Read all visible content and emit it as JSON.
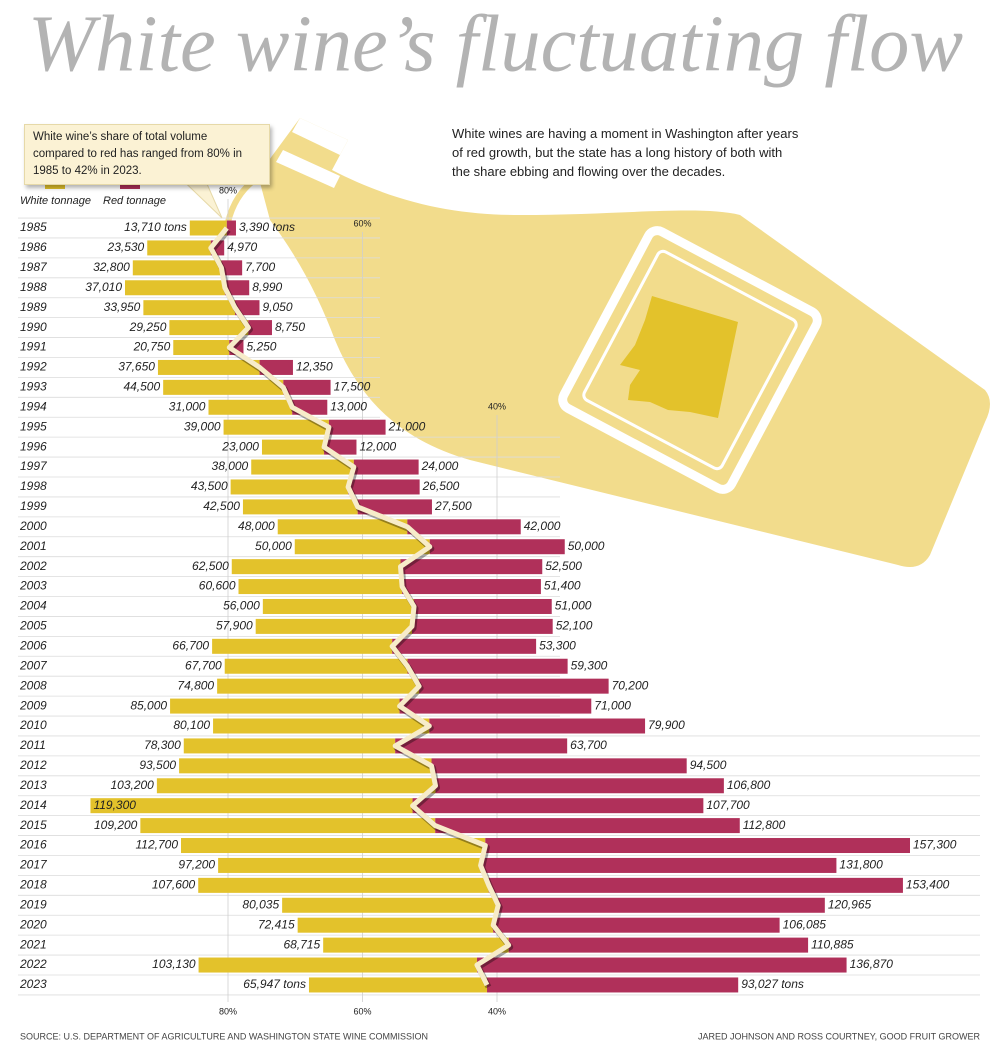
{
  "chart_data": {
    "type": "diverging_bar",
    "title": "White wine’s fluctuating flow",
    "annotation": "White wine’s share of total volume compared to red has ranged from 80% in 1985 to 42% in 2023.",
    "description": "White wines are having a moment in Washington after years of red growth, but the state has a long history of both with the share ebbing and flowing over the decades.",
    "categories": [
      "1985",
      "1986",
      "1987",
      "1988",
      "1989",
      "1990",
      "1991",
      "1992",
      "1993",
      "1994",
      "1995",
      "1996",
      "1997",
      "1998",
      "1999",
      "2000",
      "2001",
      "2002",
      "2003",
      "2004",
      "2005",
      "2006",
      "2007",
      "2008",
      "2009",
      "2010",
      "2011",
      "2012",
      "2013",
      "2014",
      "2015",
      "2016",
      "2017",
      "2018",
      "2019",
      "2020",
      "2021",
      "2022",
      "2023"
    ],
    "series": [
      {
        "name": "White tonnage",
        "color": "#e3c22b",
        "values": [
          13710,
          23530,
          32800,
          37010,
          33950,
          29250,
          20750,
          37650,
          44500,
          31000,
          39000,
          23000,
          38000,
          43500,
          42500,
          48000,
          50000,
          62500,
          60600,
          56000,
          57900,
          66700,
          67700,
          74800,
          85000,
          80100,
          78300,
          93500,
          103200,
          119300,
          109200,
          112700,
          97200,
          107600,
          80035,
          72415,
          68715,
          103130,
          65947
        ],
        "value_labels": [
          "13,710 tons",
          "23,530",
          "32,800",
          "37,010",
          "33,950",
          "29,250",
          "20,750",
          "37,650",
          "44,500",
          "31,000",
          "39,000",
          "23,000",
          "38,000",
          "43,500",
          "42,500",
          "48,000",
          "50,000",
          "62,500",
          "60,600",
          "56,000",
          "57,900",
          "66,700",
          "67,700",
          "74,800",
          "85,000",
          "80,100",
          "78,300",
          "93,500",
          "103,200",
          "119,300",
          "109,200",
          "112,700",
          "97,200",
          "107,600",
          "80,035",
          "72,415",
          "68,715",
          "103,130",
          "65,947 tons"
        ]
      },
      {
        "name": "Red tonnage",
        "color": "#b0305a",
        "values": [
          3390,
          4970,
          7700,
          8990,
          9050,
          8750,
          5250,
          12350,
          17500,
          13000,
          21000,
          12000,
          24000,
          26500,
          27500,
          42000,
          50000,
          52500,
          51400,
          51000,
          52100,
          53300,
          59300,
          70200,
          71000,
          79900,
          63700,
          94500,
          106800,
          107700,
          112800,
          157300,
          131800,
          153400,
          120965,
          106085,
          110885,
          136870,
          93027
        ],
        "value_labels": [
          "3,390 tons",
          "4,970",
          "7,700",
          "8,990",
          "9,050",
          "8,750",
          "5,250",
          "12,350",
          "17,500",
          "13,000",
          "21,000",
          "12,000",
          "24,000",
          "26,500",
          "27,500",
          "42,000",
          "50,000",
          "52,500",
          "51,400",
          "51,000",
          "52,100",
          "53,300",
          "59,300",
          "70,200",
          "71,000",
          "79,900",
          "63,700",
          "94,500",
          "106,800",
          "107,700",
          "112,800",
          "157,300",
          "131,800",
          "153,400",
          "120,965",
          "106,085",
          "110,885",
          "136,870",
          "93,027 tons"
        ]
      }
    ],
    "xlim": [
      80,
      40
    ],
    "xticks": [
      {
        "value": 80,
        "label": "80%"
      },
      {
        "value": 60,
        "label": "60%"
      },
      {
        "value": 40,
        "label": "40%"
      }
    ],
    "source": "SOURCE: U.S. DEPARTMENT OF AGRICULTURE AND WASHINGTON STATE WINE COMMISSION",
    "credit": "JARED JOHNSON AND ROSS COURTNEY, GOOD FRUIT GROWER"
  }
}
